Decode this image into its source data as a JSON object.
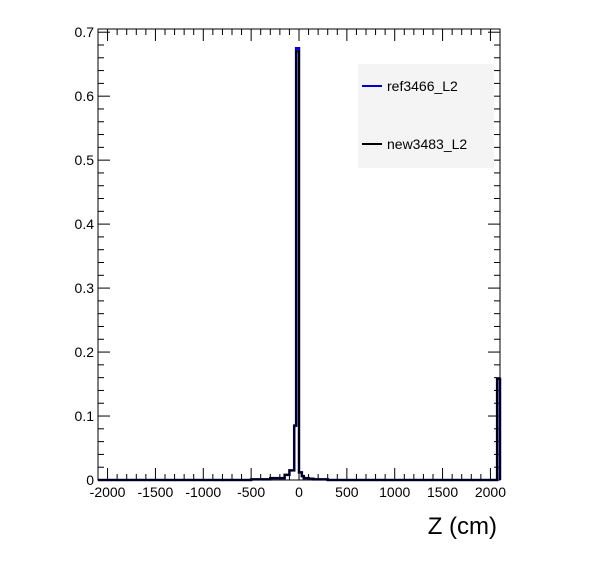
{
  "chart_data": {
    "type": "line",
    "title": "",
    "xlabel": "Z (cm)",
    "ylabel": "",
    "xlim": [
      -2100,
      2100
    ],
    "ylim": [
      0,
      0.705
    ],
    "x_ticks": [
      -2000,
      -1500,
      -1000,
      -500,
      0,
      500,
      1000,
      1500,
      2000
    ],
    "x_tick_labels": [
      "-2000",
      "-1500",
      "-1000",
      "-500",
      "0",
      "500",
      "1000",
      "1500",
      "2000"
    ],
    "y_ticks": [
      0,
      0.1,
      0.2,
      0.3,
      0.4,
      0.5,
      0.6,
      0.7
    ],
    "y_tick_labels": [
      "0",
      "0.1",
      "0.2",
      "0.3",
      "0.4",
      "0.5",
      "0.6",
      "0.7"
    ],
    "grid": false,
    "legend_position": "top-right",
    "bin_edges": [
      -2100,
      -500,
      -300,
      -150,
      -100,
      -50,
      -30,
      0,
      30,
      50,
      100,
      150,
      300,
      600,
      2070,
      2100
    ],
    "series": [
      {
        "name": "ref3466_L2",
        "color": "#0000cc",
        "values": [
          0,
          0.001,
          0.003,
          0.008,
          0.015,
          0.085,
          0.675,
          0.012,
          0.006,
          0.003,
          0.002,
          0.001,
          0.0,
          0.0,
          0.158
        ]
      },
      {
        "name": "new3483_L2",
        "color": "#000000",
        "values": [
          0,
          0.001,
          0.003,
          0.008,
          0.015,
          0.085,
          0.67,
          0.012,
          0.006,
          0.003,
          0.002,
          0.001,
          0.0,
          0.0,
          0.158
        ]
      }
    ]
  }
}
